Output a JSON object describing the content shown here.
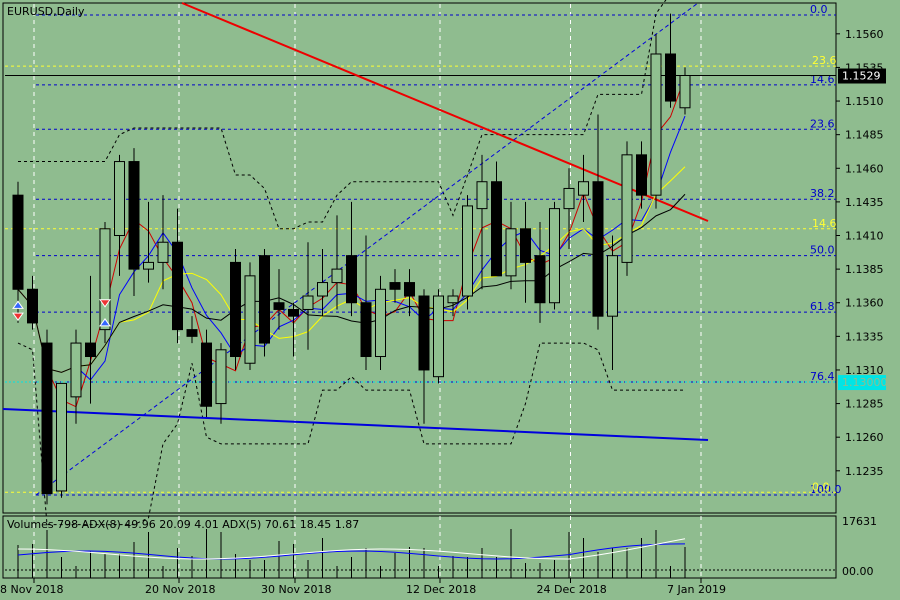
{
  "chart_data": {
    "type": "candlestick",
    "symbol_label": "EURUSD,Daily",
    "current_price": "1.1529",
    "level_label_76": "1.13000",
    "y_axis_ticks": [
      "1.1560",
      "1.1535",
      "1.1510",
      "1.1485",
      "1.1460",
      "1.1435",
      "1.1410",
      "1.1385",
      "1.1360",
      "1.1335",
      "1.1310",
      "1.1285",
      "1.1260",
      "1.1235"
    ],
    "y_axis_values": [
      1.156,
      1.1535,
      1.151,
      1.1485,
      1.146,
      1.1435,
      1.141,
      1.1385,
      1.136,
      1.1335,
      1.131,
      1.1285,
      1.126,
      1.1235
    ],
    "x_axis_ticks": [
      "8 Nov 2018",
      "20 Nov 2018",
      "30 Nov 2018",
      "12 Dec 2018",
      "24 Dec 2018",
      "7 Jan 2019"
    ],
    "x_axis_tick_bars": [
      0,
      10,
      18,
      28,
      37,
      46
    ],
    "fib_blue": [
      {
        "label": "0.0",
        "price": 1.1574
      },
      {
        "label": "14.6",
        "price": 1.1522
      },
      {
        "label": "23.6",
        "price": 1.1489
      },
      {
        "label": "38.2",
        "price": 1.1437
      },
      {
        "label": "50.0",
        "price": 1.1395
      },
      {
        "label": "61.8",
        "price": 1.1353
      },
      {
        "label": "76.4",
        "price": 1.1301
      },
      {
        "label": "100.0",
        "price": 1.1217
      }
    ],
    "fib_yellow": [
      {
        "label": "23.6",
        "price": 1.1536
      },
      {
        "label": "14.6",
        "price": 1.1415
      },
      {
        "label": "0.0",
        "price": 1.1219
      }
    ],
    "candles": [
      {
        "o": 1.144,
        "h": 1.145,
        "l": 1.1345,
        "c": 1.137
      },
      {
        "o": 1.137,
        "h": 1.138,
        "l": 1.134,
        "c": 1.1345
      },
      {
        "o": 1.133,
        "h": 1.134,
        "l": 1.121,
        "c": 1.1218
      },
      {
        "o": 1.122,
        "h": 1.13,
        "l": 1.1215,
        "c": 1.13
      },
      {
        "o": 1.129,
        "h": 1.134,
        "l": 1.127,
        "c": 1.133
      },
      {
        "o": 1.133,
        "h": 1.138,
        "l": 1.1285,
        "c": 1.132
      },
      {
        "o": 1.134,
        "h": 1.142,
        "l": 1.133,
        "c": 1.1415
      },
      {
        "o": 1.141,
        "h": 1.147,
        "l": 1.138,
        "c": 1.1465
      },
      {
        "o": 1.1465,
        "h": 1.1475,
        "l": 1.1365,
        "c": 1.1385
      },
      {
        "o": 1.1385,
        "h": 1.1435,
        "l": 1.1375,
        "c": 1.139
      },
      {
        "o": 1.139,
        "h": 1.144,
        "l": 1.137,
        "c": 1.1405
      },
      {
        "o": 1.1405,
        "h": 1.143,
        "l": 1.133,
        "c": 1.134
      },
      {
        "o": 1.134,
        "h": 1.135,
        "l": 1.133,
        "c": 1.1335
      },
      {
        "o": 1.133,
        "h": 1.134,
        "l": 1.1275,
        "c": 1.1283
      },
      {
        "o": 1.1285,
        "h": 1.133,
        "l": 1.127,
        "c": 1.1325
      },
      {
        "o": 1.139,
        "h": 1.14,
        "l": 1.131,
        "c": 1.132
      },
      {
        "o": 1.1315,
        "h": 1.139,
        "l": 1.131,
        "c": 1.138
      },
      {
        "o": 1.1395,
        "h": 1.14,
        "l": 1.132,
        "c": 1.133
      },
      {
        "o": 1.136,
        "h": 1.1385,
        "l": 1.134,
        "c": 1.1355
      },
      {
        "o": 1.1355,
        "h": 1.136,
        "l": 1.132,
        "c": 1.135
      },
      {
        "o": 1.1355,
        "h": 1.1405,
        "l": 1.1325,
        "c": 1.1365
      },
      {
        "o": 1.1365,
        "h": 1.14,
        "l": 1.135,
        "c": 1.1375
      },
      {
        "o": 1.1375,
        "h": 1.1425,
        "l": 1.1355,
        "c": 1.1385
      },
      {
        "o": 1.1395,
        "h": 1.1435,
        "l": 1.135,
        "c": 1.136
      },
      {
        "o": 1.136,
        "h": 1.141,
        "l": 1.131,
        "c": 1.132
      },
      {
        "o": 1.132,
        "h": 1.138,
        "l": 1.131,
        "c": 1.137
      },
      {
        "o": 1.1375,
        "h": 1.1385,
        "l": 1.136,
        "c": 1.137
      },
      {
        "o": 1.1375,
        "h": 1.1385,
        "l": 1.135,
        "c": 1.1365
      },
      {
        "o": 1.1365,
        "h": 1.137,
        "l": 1.127,
        "c": 1.131
      },
      {
        "o": 1.1305,
        "h": 1.137,
        "l": 1.13,
        "c": 1.1365
      },
      {
        "o": 1.136,
        "h": 1.137,
        "l": 1.135,
        "c": 1.1365
      },
      {
        "o": 1.1365,
        "h": 1.144,
        "l": 1.1355,
        "c": 1.1432
      },
      {
        "o": 1.143,
        "h": 1.147,
        "l": 1.137,
        "c": 1.145
      },
      {
        "o": 1.145,
        "h": 1.1465,
        "l": 1.138,
        "c": 1.138
      },
      {
        "o": 1.138,
        "h": 1.1435,
        "l": 1.137,
        "c": 1.1415
      },
      {
        "o": 1.1415,
        "h": 1.1435,
        "l": 1.136,
        "c": 1.139
      },
      {
        "o": 1.1395,
        "h": 1.142,
        "l": 1.1345,
        "c": 1.136
      },
      {
        "o": 1.136,
        "h": 1.1435,
        "l": 1.1355,
        "c": 1.143
      },
      {
        "o": 1.143,
        "h": 1.146,
        "l": 1.14,
        "c": 1.1445
      },
      {
        "o": 1.144,
        "h": 1.147,
        "l": 1.142,
        "c": 1.145
      },
      {
        "o": 1.145,
        "h": 1.15,
        "l": 1.134,
        "c": 1.135
      },
      {
        "o": 1.135,
        "h": 1.141,
        "l": 1.131,
        "c": 1.1395
      },
      {
        "o": 1.139,
        "h": 1.148,
        "l": 1.138,
        "c": 1.147
      },
      {
        "o": 1.147,
        "h": 1.148,
        "l": 1.143,
        "c": 1.144
      },
      {
        "o": 1.144,
        "h": 1.156,
        "l": 1.143,
        "c": 1.1545
      },
      {
        "o": 1.1545,
        "h": 1.1575,
        "l": 1.1505,
        "c": 1.151
      },
      {
        "o": 1.1505,
        "h": 1.1535,
        "l": 1.15,
        "c": 1.1529
      }
    ],
    "indicator_label": "Volumes 798  ADX(8) 49.96 20.09 4.01  ADX(5) 70.61 18.45 1.87",
    "indicator_ticks": [
      "17631",
      "00.00"
    ],
    "colors": {
      "background": "#8fbc8f",
      "candle_up": "#90c090",
      "candle_down": "#000000",
      "fib_blue": "#0000cc",
      "fib_yellow": "#ffff33",
      "ma_red": "#cc0000",
      "ma_blue": "#0000ff",
      "ma_yellow": "#ffff00",
      "ma_black": "#000000",
      "trend_red": "#ee0000",
      "trend_blue": "#0000dd",
      "level_cyan": "#00e5e5"
    }
  }
}
